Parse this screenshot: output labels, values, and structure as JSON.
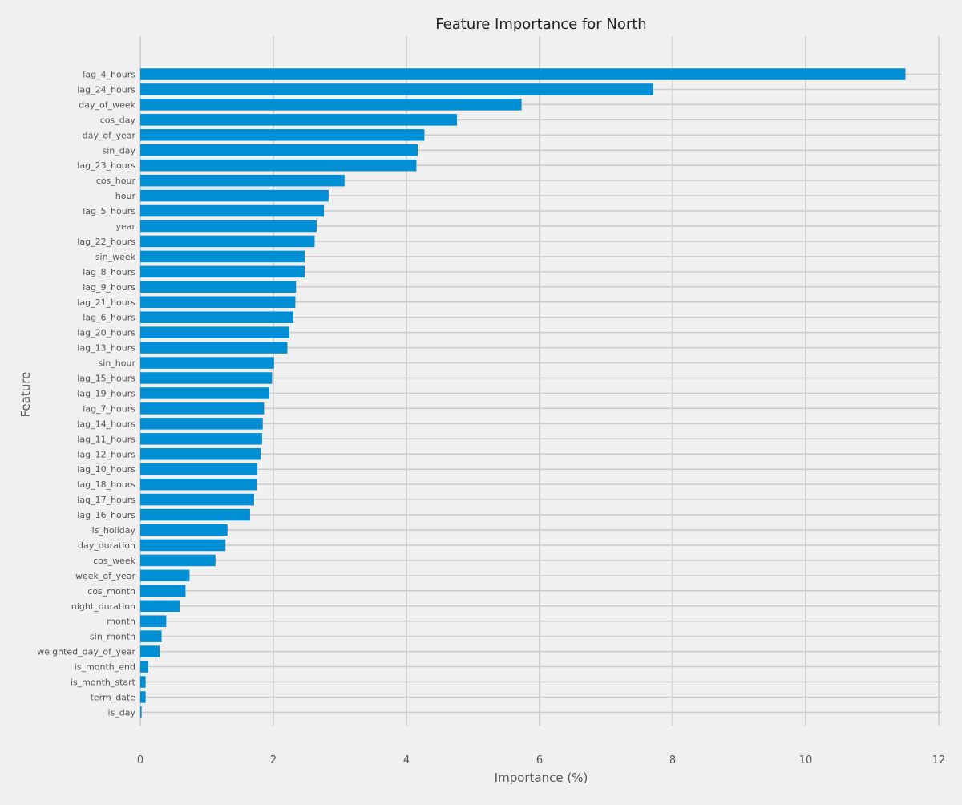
{
  "chart_data": {
    "type": "bar",
    "orientation": "horizontal",
    "title": "Feature Importance for North",
    "xlabel": "Importance (%)",
    "ylabel": "Feature",
    "xlim": [
      0,
      12
    ],
    "xticks": [
      0,
      2,
      4,
      6,
      8,
      10,
      12
    ],
    "grid": true,
    "bar_color": "#008fd5",
    "background_color": "#f0f0f0",
    "grid_color": "#cbcbcb",
    "categories": [
      "lag_4_hours",
      "lag_24_hours",
      "day_of_week",
      "cos_day",
      "day_of_year",
      "sin_day",
      "lag_23_hours",
      "cos_hour",
      "hour",
      "lag_5_hours",
      "year",
      "lag_22_hours",
      "sin_week",
      "lag_8_hours",
      "lag_9_hours",
      "lag_21_hours",
      "lag_6_hours",
      "lag_20_hours",
      "lag_13_hours",
      "sin_hour",
      "lag_15_hours",
      "lag_19_hours",
      "lag_7_hours",
      "lag_14_hours",
      "lag_11_hours",
      "lag_12_hours",
      "lag_10_hours",
      "lag_18_hours",
      "lag_17_hours",
      "lag_16_hours",
      "is_holiday",
      "day_duration",
      "cos_week",
      "week_of_year",
      "cos_month",
      "night_duration",
      "month",
      "sin_month",
      "weighted_day_of_year",
      "is_month_end",
      "is_month_start",
      "term_date",
      "is_day"
    ],
    "values": [
      11.5,
      7.71,
      5.73,
      4.76,
      4.27,
      4.17,
      4.15,
      3.07,
      2.83,
      2.76,
      2.65,
      2.62,
      2.47,
      2.47,
      2.34,
      2.33,
      2.3,
      2.24,
      2.21,
      2.01,
      1.98,
      1.94,
      1.86,
      1.84,
      1.83,
      1.81,
      1.76,
      1.75,
      1.71,
      1.65,
      1.31,
      1.28,
      1.13,
      0.74,
      0.68,
      0.59,
      0.39,
      0.32,
      0.29,
      0.12,
      0.08,
      0.08,
      0.02
    ]
  }
}
